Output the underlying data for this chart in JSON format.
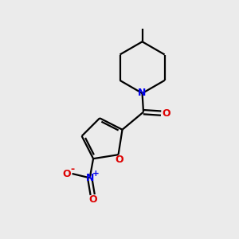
{
  "background_color": "#ebebeb",
  "bond_color": "#000000",
  "N_color": "#0000ee",
  "O_color": "#dd0000",
  "figsize": [
    3.0,
    3.0
  ],
  "dpi": 100,
  "xlim": [
    0,
    10
  ],
  "ylim": [
    0,
    10
  ]
}
